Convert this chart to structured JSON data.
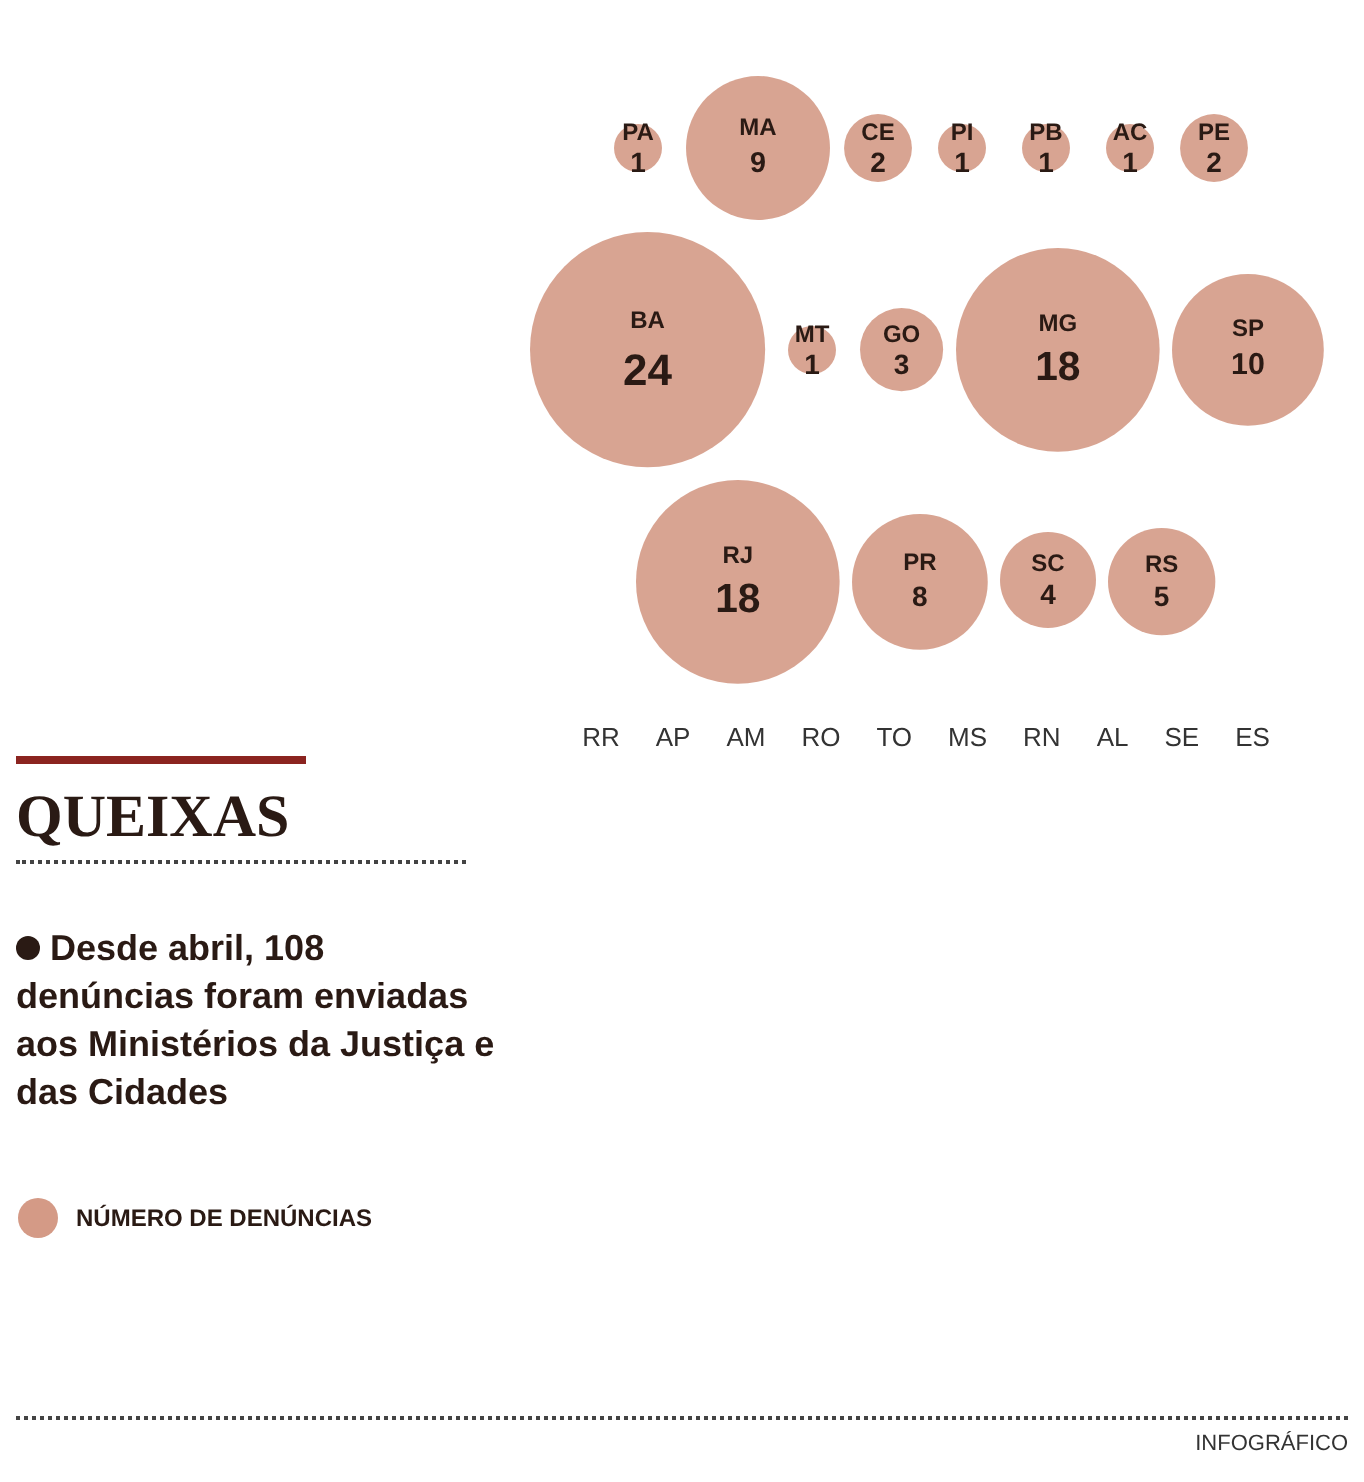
{
  "chart_data": {
    "type": "other",
    "title": "QUEIXAS",
    "subtitle": "Desde abril, 108 denúncias foram enviadas aos Ministérios da Justiça e das Cidades",
    "categories": [
      "PA",
      "MA",
      "CE",
      "PI",
      "PB",
      "AC",
      "PE",
      "BA",
      "MT",
      "GO",
      "MG",
      "SP",
      "RJ",
      "PR",
      "SC",
      "RS"
    ],
    "series": [
      {
        "name": "NÚMERO DE DENÚNCIAS",
        "color": "#d49a86",
        "values": [
          1,
          9,
          2,
          1,
          1,
          1,
          2,
          24,
          1,
          3,
          18,
          10,
          18,
          8,
          4,
          5
        ]
      }
    ],
    "data_labels": true,
    "legend": "left",
    "annotations": [
      "RR",
      "AP",
      "AM",
      "RO",
      "TO",
      "MS",
      "RN",
      "AL",
      "SE",
      "ES",
      "INFOGRÁFICO"
    ]
  }
}
